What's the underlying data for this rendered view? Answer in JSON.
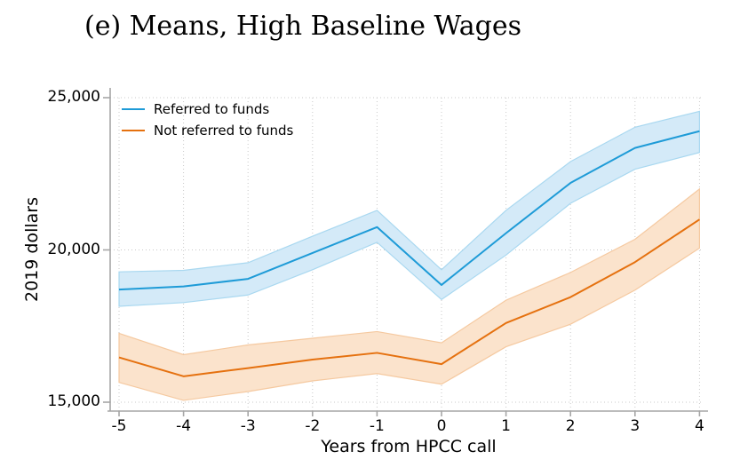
{
  "title": "(e) Means, High Baseline Wages",
  "chart_data": {
    "type": "line",
    "title": "(e) Means, High Baseline Wages",
    "xlabel": "Years from HPCC call",
    "ylabel": "2019 dollars",
    "xlim": [
      -5,
      4
    ],
    "ylim": [
      15000,
      25000
    ],
    "x": [
      -5,
      -4,
      -3,
      -2,
      -1,
      0,
      1,
      2,
      3,
      4
    ],
    "x_ticks": [
      -5,
      -4,
      -3,
      -2,
      -1,
      0,
      1,
      2,
      3,
      4
    ],
    "x_tick_labels": [
      "-5",
      "-4",
      "-3",
      "-2",
      "-1",
      "0",
      "1",
      "2",
      "3",
      "4"
    ],
    "y_ticks": [
      15000,
      20000,
      25000
    ],
    "y_tick_labels": [
      "15,000",
      "20,000",
      "25,000"
    ],
    "grid": "dotted both axes",
    "legend_position": "top-left inside, no frame",
    "series": [
      {
        "name": "Referred to funds",
        "color": "#1e9bd7",
        "band_fill": "#d4eaf8",
        "band_edge": "#a9d8f0",
        "values": [
          18700,
          18800,
          19050,
          19900,
          20750,
          18850,
          20550,
          22200,
          23350,
          23900
        ],
        "band_lower": [
          18150,
          18270,
          18520,
          19350,
          20250,
          18370,
          19830,
          21530,
          22650,
          23200
        ],
        "band_upper": [
          19280,
          19330,
          19580,
          20450,
          21300,
          19350,
          21300,
          22900,
          24030,
          24550
        ]
      },
      {
        "name": "Not referred to funds",
        "color": "#e5710f",
        "band_fill": "#fbe3cc",
        "band_edge": "#f5c9a0",
        "values": [
          16470,
          15850,
          16120,
          16400,
          16620,
          16250,
          17600,
          18450,
          19600,
          21000
        ],
        "band_lower": [
          15650,
          15060,
          15350,
          15700,
          15940,
          15590,
          16820,
          17560,
          18680,
          20060
        ],
        "band_upper": [
          17260,
          16560,
          16880,
          17100,
          17320,
          16950,
          18350,
          19260,
          20350,
          22000
        ]
      }
    ]
  }
}
